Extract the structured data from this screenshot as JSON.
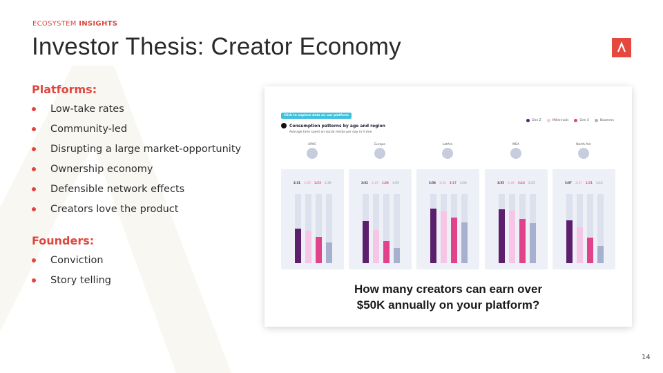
{
  "header": {
    "eyebrow_prefix": "ECOSYSTEM",
    "eyebrow_strong": "INSIGHTS",
    "title": "Investor Thesis: Creator Economy"
  },
  "colors": {
    "accent": "#e0463d",
    "gen_z": "#5b1f6e",
    "millennials": "#f7c6e6",
    "gen_x": "#e0428b",
    "boomers": "#a8b0cf"
  },
  "left": {
    "platforms_heading": "Platforms:",
    "platforms": [
      "Low-take rates",
      "Community-led",
      "Disrupting a large market-opportunity",
      "Ownership economy",
      "Defensible network effects",
      "Creators love the product"
    ],
    "founders_heading": "Founders:",
    "founders": [
      "Conviction",
      "Story telling"
    ]
  },
  "card": {
    "cta": "Click to explore data on our platform",
    "title": "Consumption patterns by age and region",
    "subtitle": "Average time spent on social media per day in h:mm",
    "question_line1": "How many creators can earn over",
    "question_line2": "$50K annually on your platform?"
  },
  "chart_data": {
    "type": "bar",
    "title": "Consumption patterns by age and region",
    "subtitle": "Average time spent on social media per day in h:mm",
    "legend": [
      "Gen Z",
      "Millennials",
      "Gen X",
      "Boomers"
    ],
    "legend_position": "top-right",
    "ylim": [
      0,
      5
    ],
    "categories": [
      "APAC",
      "Europe",
      "LatAm",
      "MEA",
      "North Am"
    ],
    "labels": [
      [
        "2:31",
        "2:20",
        "1:53",
        "1:29"
      ],
      [
        "3:02",
        "2:25",
        "1:36",
        "1:05"
      ],
      [
        "3:56",
        "3:44",
        "3:17",
        "2:56"
      ],
      [
        "3:55",
        "3:49",
        "3:13",
        "2:55"
      ],
      [
        "3:07",
        "2:37",
        "1:51",
        "1:16"
      ]
    ],
    "series": [
      {
        "name": "Gen Z",
        "values": [
          2.52,
          3.03,
          3.93,
          3.92,
          3.12
        ]
      },
      {
        "name": "Millennials",
        "values": [
          2.33,
          2.42,
          3.73,
          3.82,
          2.62
        ]
      },
      {
        "name": "Gen X",
        "values": [
          1.88,
          1.6,
          3.28,
          3.22,
          1.85
        ]
      },
      {
        "name": "Boomers",
        "values": [
          1.48,
          1.08,
          2.93,
          2.92,
          1.27
        ]
      }
    ]
  },
  "page": {
    "number": "14"
  }
}
